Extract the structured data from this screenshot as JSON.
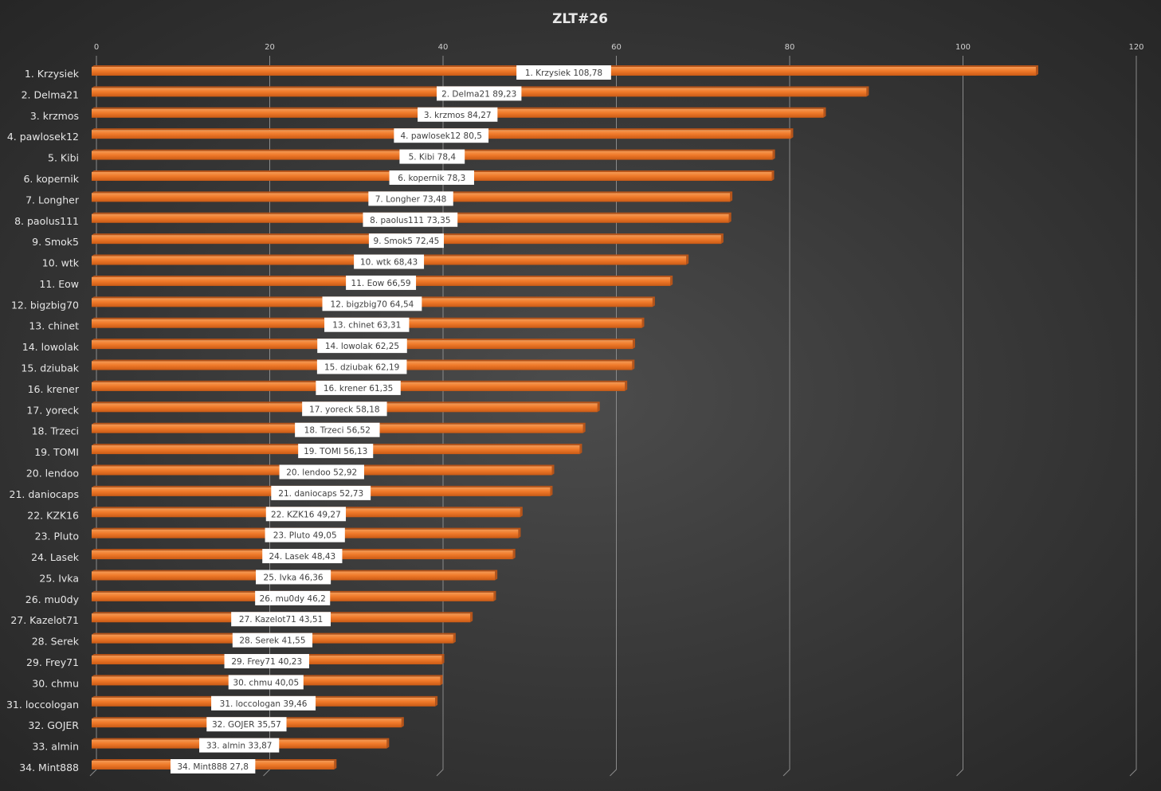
{
  "chart_data": {
    "type": "bar",
    "orientation": "horizontal",
    "title": "ZLT#26",
    "xlabel": "",
    "ylabel": "",
    "xlim": [
      0,
      120
    ],
    "xticks": [
      "0",
      "20",
      "40",
      "60",
      "80",
      "100",
      "120"
    ],
    "grid": true,
    "bar_color": "#f07a2a",
    "categories": [
      "1. Krzysiek",
      "2. Delma21",
      "3. krzmos",
      "4. pawlosek12",
      "5. Kibi",
      "6. kopernik",
      "7. Longher",
      "8. paolus111",
      "9. Smok5",
      "10. wtk",
      "11. Eow",
      "12. bigzbig70",
      "13. chinet",
      "14. lowolak",
      "15. dziubak",
      "16. krener",
      "17. yoreck",
      "18. Trzeci",
      "19. TOMI",
      "20. lendoo",
      "21. daniocaps",
      "22. KZK16",
      "23. Pluto",
      "24. Lasek",
      "25. Ivka",
      "26. mu0dy",
      "27. Kazelot71",
      "28. Serek",
      "29. Frey71",
      "30. chmu",
      "31. loccologan",
      "32. GOJER",
      "33. almin",
      "34. Mint888"
    ],
    "values": [
      108.78,
      89.23,
      84.27,
      80.5,
      78.4,
      78.3,
      73.48,
      73.35,
      72.45,
      68.43,
      66.59,
      64.54,
      63.31,
      62.25,
      62.19,
      61.35,
      58.18,
      56.52,
      56.13,
      52.92,
      52.73,
      49.27,
      49.05,
      48.43,
      46.36,
      46.2,
      43.51,
      41.55,
      40.23,
      40.05,
      39.46,
      35.57,
      33.87,
      27.8
    ],
    "data_labels": [
      "1. Krzysiek 108,78",
      "2. Delma21 89,23",
      "3. krzmos 84,27",
      "4. pawlosek12 80,5",
      "5. Kibi 78,4",
      "6. kopernik 78,3",
      "7. Longher 73,48",
      "8. paolus111 73,35",
      "9. Smok5 72,45",
      "10. wtk 68,43",
      "11. Eow 66,59",
      "12. bigzbig70 64,54",
      "13. chinet 63,31",
      "14. lowolak 62,25",
      "15. dziubak 62,19",
      "16. krener 61,35",
      "17. yoreck 58,18",
      "18. Trzeci 56,52",
      "19. TOMI 56,13",
      "20. lendoo 52,92",
      "21. daniocaps 52,73",
      "22. KZK16 49,27",
      "23. Pluto 49,05",
      "24. Lasek 48,43",
      "25. Ivka 46,36",
      "26. mu0dy 46,2",
      "27. Kazelot71 43,51",
      "28. Serek 41,55",
      "29. Frey71 40,23",
      "30. chmu 40,05",
      "31. loccologan 39,46",
      "32. GOJER 35,57",
      "33. almin 33,87",
      "34. Mint888 27,8"
    ]
  }
}
